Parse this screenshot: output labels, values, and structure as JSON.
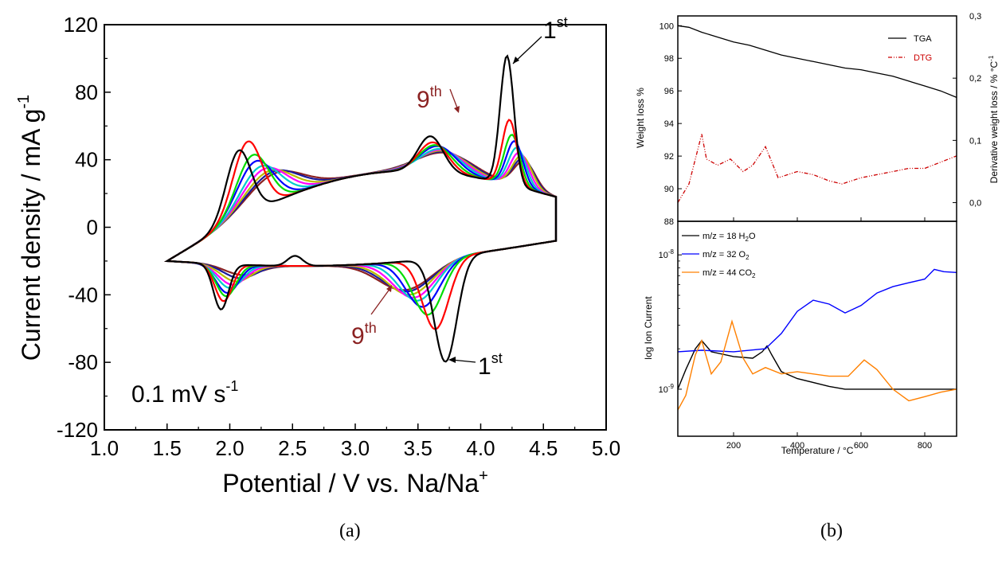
{
  "captions": {
    "a": "(a)",
    "b": "(b)"
  },
  "chart_data": [
    {
      "type": "line",
      "panel": "(a)",
      "xlabel": "Potential / V vs. Na/Na",
      "xlabel_sup": "+",
      "ylabel": "Current density / mA g",
      "ylabel_sup": "-1",
      "xlim": [
        1.0,
        5.0
      ],
      "ylim": [
        -120,
        120
      ],
      "xticks": [
        1.0,
        1.5,
        2.0,
        2.5,
        3.0,
        3.5,
        4.0,
        4.5,
        5.0
      ],
      "yticks": [
        -120,
        -80,
        -40,
        0,
        40,
        80,
        120
      ],
      "grid": false,
      "annotation_rate": {
        "text": "0.1 mV s",
        "sup": "-1"
      },
      "cycle_labels": {
        "first": "1",
        "first_sup": "st",
        "ninth": "9",
        "ninth_sup": "th"
      },
      "series": [
        {
          "color": "#000000",
          "anodic_peaks": [
            2.07,
            3.6,
            4.21
          ],
          "anodic_values": [
            55,
            35,
            90
          ],
          "cathodic_peaks": [
            1.93,
            2.52,
            3.72
          ],
          "cathodic_values": [
            -45,
            -12,
            -80
          ]
        },
        {
          "color": "#ff0000",
          "anodic_peaks": [
            2.14,
            3.62,
            4.23
          ],
          "anodic_values": [
            58,
            32,
            53
          ],
          "cathodic_peaks": [
            1.95,
            3.64
          ],
          "cathodic_values": [
            -40,
            -60
          ]
        },
        {
          "color": "#00dd00",
          "anodic_peaks": [
            2.18,
            3.64,
            4.25
          ],
          "anodic_values": [
            49,
            31,
            45
          ],
          "cathodic_peaks": [
            1.97,
            3.58
          ],
          "cathodic_values": [
            -37,
            -51
          ]
        },
        {
          "color": "#0000ff",
          "anodic_peaks": [
            2.2,
            3.66,
            4.27
          ],
          "anodic_values": [
            45,
            31,
            42
          ],
          "cathodic_peaks": [
            1.98,
            3.54
          ],
          "cathodic_values": [
            -35,
            -46
          ]
        },
        {
          "color": "#00cccc",
          "anodic_peaks": [
            2.24,
            3.68,
            4.29
          ],
          "anodic_values": [
            41,
            30,
            39
          ],
          "cathodic_peaks": [
            2.0,
            3.5
          ],
          "cathodic_values": [
            -32,
            -42
          ]
        },
        {
          "color": "#ff00ff",
          "anodic_peaks": [
            2.27,
            3.69,
            4.31
          ],
          "anodic_values": [
            39,
            30,
            37
          ],
          "cathodic_peaks": [
            2.02,
            3.47
          ],
          "cathodic_values": [
            -30,
            -40
          ]
        },
        {
          "color": "#bbbb00",
          "anodic_peaks": [
            2.3,
            3.7,
            4.33
          ],
          "anodic_values": [
            37,
            30,
            36
          ],
          "cathodic_peaks": [
            2.05,
            3.44
          ],
          "cathodic_values": [
            -28,
            -38
          ]
        },
        {
          "color": "#1a1a99",
          "anodic_peaks": [
            2.33,
            3.71,
            4.34
          ],
          "anodic_values": [
            36,
            30,
            35
          ],
          "cathodic_peaks": [
            2.08,
            3.42
          ],
          "cathodic_values": [
            -26,
            -36
          ]
        },
        {
          "color": "#8b2222",
          "anodic_peaks": [
            2.35,
            3.72,
            4.35
          ],
          "anodic_values": [
            35,
            30,
            34
          ],
          "cathodic_peaks": [
            2.1,
            3.4
          ],
          "cathodic_values": [
            -24,
            -35
          ]
        }
      ]
    },
    {
      "type": "line",
      "panel": "(b) top",
      "xlim": [
        25,
        900
      ],
      "ylim": [
        88,
        100.6
      ],
      "y2lim": [
        -0.03,
        0.3
      ],
      "xticks": [
        200,
        400,
        600,
        800
      ],
      "yticks": [
        88,
        90,
        92,
        94,
        96,
        98,
        100
      ],
      "y2ticks_labels": [
        "0,0",
        "0,1",
        "0,2",
        "0,3"
      ],
      "y2ticks": [
        0.0,
        0.1,
        0.2,
        0.3
      ],
      "ylabel": "Weight loss %",
      "y2label": "Derivative weight loss / % °C",
      "y2label_sup": "-1",
      "legend_position": "top-right",
      "series": [
        {
          "name": "TGA",
          "color": "#000000",
          "axis": "left",
          "x": [
            25,
            60,
            100,
            150,
            200,
            250,
            300,
            350,
            400,
            450,
            500,
            550,
            600,
            650,
            700,
            750,
            800,
            850,
            900
          ],
          "y": [
            100.0,
            99.9,
            99.6,
            99.3,
            99.0,
            98.8,
            98.5,
            98.2,
            98.0,
            97.8,
            97.6,
            97.4,
            97.3,
            97.1,
            96.9,
            96.6,
            96.3,
            96.0,
            95.6
          ]
        },
        {
          "name": "DTG",
          "color": "#cc0000",
          "axis": "right",
          "x": [
            25,
            60,
            85,
            100,
            115,
            150,
            190,
            230,
            260,
            300,
            340,
            400,
            450,
            500,
            540,
            600,
            650,
            700,
            750,
            800,
            850,
            900
          ],
          "y": [
            0.0,
            0.03,
            0.08,
            0.11,
            0.07,
            0.06,
            0.07,
            0.05,
            0.06,
            0.09,
            0.04,
            0.05,
            0.045,
            0.035,
            0.03,
            0.04,
            0.045,
            0.05,
            0.055,
            0.055,
            0.065,
            0.075
          ]
        }
      ]
    },
    {
      "type": "line",
      "panel": "(b) bottom",
      "xlim": [
        25,
        900
      ],
      "yscale": "log",
      "ylim_log10": [
        -9.35,
        -7.75
      ],
      "xticks": [
        200,
        400,
        600,
        800
      ],
      "yticks_exp": [
        -9,
        -8
      ],
      "ytick_base": "10",
      "ylabel": "log Ion Current",
      "xlabel": "Temperature / °C",
      "legend_position": "top-left",
      "series": [
        {
          "name": "m/z = 18 H",
          "sub": "2",
          "suffix": "O",
          "color": "#000000",
          "x": [
            25,
            50,
            80,
            100,
            130,
            200,
            260,
            290,
            305,
            320,
            350,
            400,
            500,
            550,
            600,
            700,
            800,
            900
          ],
          "y": [
            1e-09,
            1.4e-09,
            2e-09,
            2.3e-09,
            1.9e-09,
            1.75e-09,
            1.7e-09,
            1.9e-09,
            2.1e-09,
            1.8e-09,
            1.35e-09,
            1.2e-09,
            1.05e-09,
            1e-09,
            1e-09,
            1e-09,
            1e-09,
            1e-09
          ]
        },
        {
          "name": "m/z = 32 O",
          "sub": "2",
          "suffix": "",
          "color": "#0000ff",
          "x": [
            25,
            100,
            200,
            300,
            350,
            400,
            450,
            500,
            550,
            600,
            650,
            700,
            750,
            800,
            830,
            860,
            900
          ],
          "y": [
            1.9e-09,
            1.95e-09,
            1.9e-09,
            2e-09,
            2.6e-09,
            3.8e-09,
            4.6e-09,
            4.3e-09,
            3.7e-09,
            4.2e-09,
            5.2e-09,
            5.8e-09,
            6.2e-09,
            6.6e-09,
            7.8e-09,
            7.5e-09,
            7.4e-09
          ]
        },
        {
          "name": "m/z = 44 CO",
          "sub": "2",
          "suffix": "",
          "color": "#ff8000",
          "x": [
            25,
            50,
            80,
            100,
            130,
            160,
            195,
            230,
            260,
            300,
            350,
            400,
            500,
            560,
            610,
            650,
            700,
            750,
            800,
            850,
            900
          ],
          "y": [
            7e-10,
            9e-10,
            1.8e-09,
            2.3e-09,
            1.3e-09,
            1.6e-09,
            3.2e-09,
            1.7e-09,
            1.3e-09,
            1.45e-09,
            1.3e-09,
            1.35e-09,
            1.25e-09,
            1.25e-09,
            1.65e-09,
            1.4e-09,
            1e-09,
            8.2e-10,
            8.8e-10,
            9.5e-10,
            1e-09
          ]
        }
      ]
    }
  ]
}
